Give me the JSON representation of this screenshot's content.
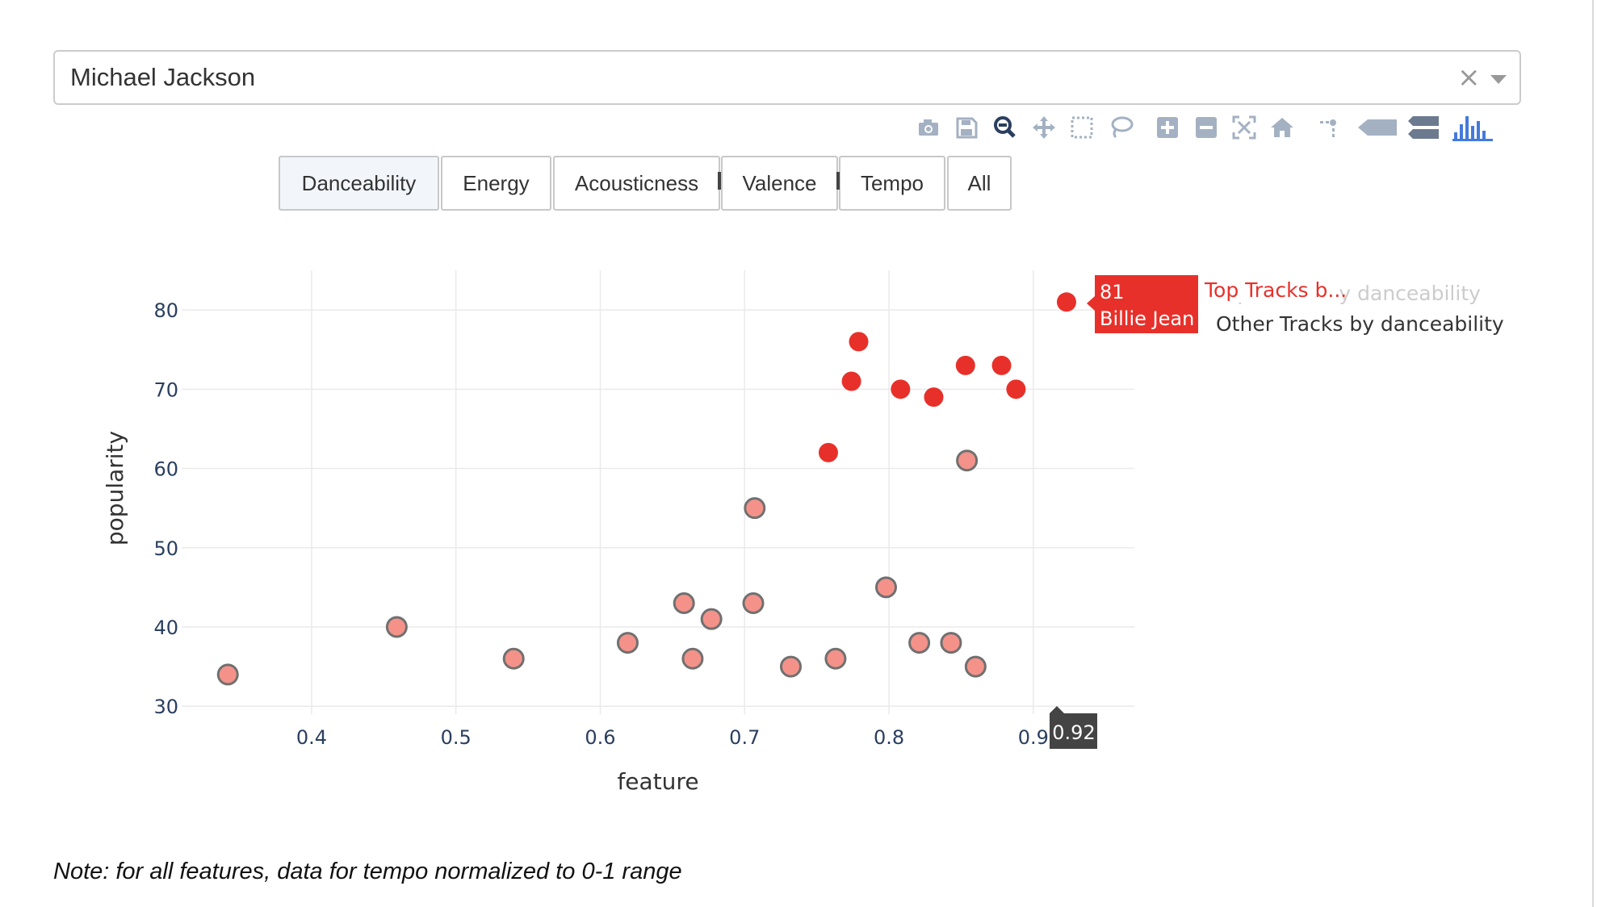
{
  "search": {
    "value": "Michael Jackson",
    "clear_symbol": "×"
  },
  "modebar": {
    "buttons": [
      "camera-icon",
      "save-icon",
      "zoom-icon",
      "pan-icon",
      "box-select-icon",
      "lasso-icon",
      "zoom-in-icon",
      "zoom-out-icon",
      "autoscale-icon",
      "home-icon",
      "spike-lines-icon",
      "hover-closest-icon",
      "hover-compare-icon",
      "plotly-logo-icon"
    ],
    "icon_color": "#a3b1c2",
    "active_color": "#2a3f5f",
    "logo_color": "#447adb"
  },
  "tabs": [
    {
      "label": "Danceability",
      "active": true
    },
    {
      "label": "Energy",
      "active": false
    },
    {
      "label": "Acousticness",
      "active": false
    },
    {
      "label": "Valence",
      "active": false
    },
    {
      "label": "Tempo",
      "active": false
    },
    {
      "label": "All",
      "active": false
    }
  ],
  "colors": {
    "top": "#e8302a",
    "other_fill": "#f4928a",
    "other_stroke": "#707070",
    "grid": "#eaeaea",
    "tooltip_dark": "#444444",
    "legend_faded": "#cccccc",
    "legend_text": "#333333"
  },
  "chart_data": {
    "type": "scatter",
    "xlabel": "feature",
    "ylabel": "popularity",
    "xlim": [
      0.31,
      0.97
    ],
    "ylim": [
      29,
      85
    ],
    "xticks": [
      "0.4",
      "0.5",
      "0.6",
      "0.7",
      "0.8",
      "0.9"
    ],
    "yticks": [
      "30",
      "40",
      "50",
      "60",
      "70",
      "80"
    ],
    "grid": true,
    "legend_position": "top-right",
    "series": [
      {
        "name": "Top Tracks by danceability",
        "points": [
          [
            0.923,
            81
          ],
          [
            0.779,
            76
          ],
          [
            0.774,
            71
          ],
          [
            0.808,
            70
          ],
          [
            0.831,
            69
          ],
          [
            0.853,
            73
          ],
          [
            0.878,
            73
          ],
          [
            0.888,
            70
          ],
          [
            0.758,
            62
          ]
        ]
      },
      {
        "name": "Other Tracks by danceability",
        "points": [
          [
            0.342,
            34
          ],
          [
            0.459,
            40
          ],
          [
            0.54,
            36
          ],
          [
            0.619,
            38
          ],
          [
            0.658,
            43
          ],
          [
            0.664,
            36
          ],
          [
            0.677,
            41
          ],
          [
            0.706,
            43
          ],
          [
            0.707,
            55
          ],
          [
            0.732,
            35
          ],
          [
            0.763,
            36
          ],
          [
            0.798,
            45
          ],
          [
            0.821,
            38
          ],
          [
            0.843,
            38
          ],
          [
            0.854,
            61
          ],
          [
            0.86,
            35
          ]
        ]
      }
    ],
    "hover": {
      "series": "Top Tracks b...",
      "value": "81",
      "track": "Billie Jean",
      "x_label": "0.92"
    },
    "legend_overlap_text": "Top Tracks by danceability"
  },
  "note": "Note: for all features, data for tempo normalized to 0-1 range"
}
